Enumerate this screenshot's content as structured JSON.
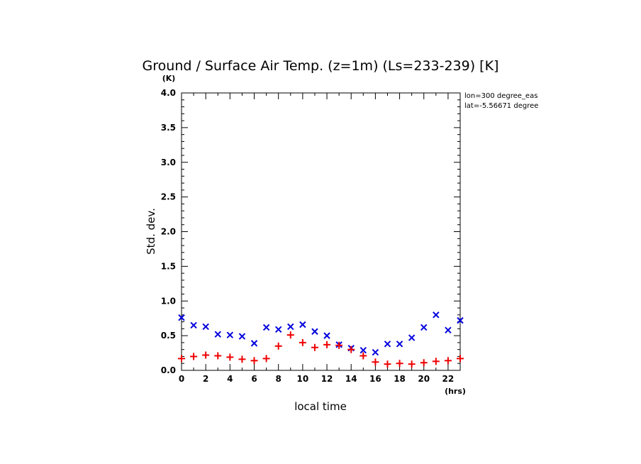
{
  "chart_data": {
    "type": "scatter",
    "title": "Ground / Surface Air Temp. (z=1m) (Ls=233-239) [K]",
    "xlabel": "local time",
    "ylabel": "Std. dev.",
    "x_unit": "(hrs)",
    "y_unit": "(K)",
    "xlim": [
      0,
      23
    ],
    "ylim": [
      0,
      4.0
    ],
    "x_ticks": [
      "0",
      "2",
      "4",
      "6",
      "8",
      "10",
      "12",
      "14",
      "16",
      "18",
      "20",
      "22"
    ],
    "y_ticks": [
      "0.0",
      "0.5",
      "1.0",
      "1.5",
      "2.0",
      "2.5",
      "3.0",
      "3.5",
      "4.0"
    ],
    "annotations": [
      "lon=300 degree_eas",
      "lat=-5.56671 degree"
    ],
    "grid": false,
    "series": [
      {
        "marker": "x",
        "color": "#0000dd",
        "x": [
          0,
          1,
          2,
          3,
          4,
          5,
          6,
          7,
          8,
          9,
          10,
          11,
          12,
          13,
          14,
          15,
          16,
          17,
          18,
          19,
          20,
          21,
          22,
          23
        ],
        "values": [
          0.76,
          0.65,
          0.63,
          0.52,
          0.51,
          0.49,
          0.39,
          0.62,
          0.59,
          0.63,
          0.66,
          0.56,
          0.5,
          0.37,
          0.32,
          0.29,
          0.26,
          0.38,
          0.38,
          0.47,
          0.62,
          0.8,
          0.58,
          0.72
        ]
      },
      {
        "marker": "+",
        "color": "#ee0000",
        "x": [
          0,
          1,
          2,
          3,
          4,
          5,
          6,
          7,
          8,
          9,
          10,
          11,
          12,
          13,
          14,
          15,
          16,
          17,
          18,
          19,
          20,
          21,
          22,
          23
        ],
        "values": [
          0.17,
          0.2,
          0.22,
          0.21,
          0.19,
          0.16,
          0.14,
          0.17,
          0.35,
          0.51,
          0.4,
          0.33,
          0.37,
          0.36,
          0.3,
          0.21,
          0.12,
          0.09,
          0.1,
          0.09,
          0.11,
          0.13,
          0.14,
          0.17
        ]
      }
    ]
  }
}
